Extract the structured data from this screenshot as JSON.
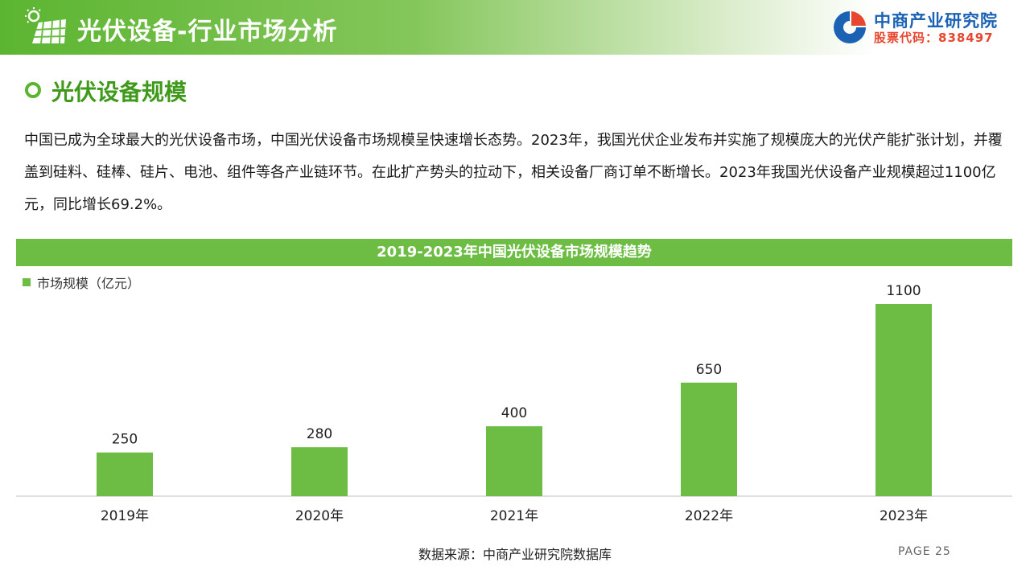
{
  "header": {
    "title": "光伏设备-行业市场分析",
    "icon": "solar-panel-icon"
  },
  "brand": {
    "name": "中商产业研究院",
    "stock_code": "股票代码：838497",
    "logo": "company-logo-icon"
  },
  "section": {
    "title": "光伏设备规模",
    "bullet": "circle-bullet-icon"
  },
  "paragraph": "中国已成为全球最大的光伏设备市场，中国光伏设备市场规模呈快速增长态势。2023年，我国光伏企业发布并实施了规模庞大的光伏产能扩张计划，并覆盖到硅料、硅棒、硅片、电池、组件等各产业链环节。在此扩产势头的拉动下，相关设备厂商订单不断增长。2023年我国光伏设备产业规模超过1100亿元，同比增长69.2%。",
  "chart_data": {
    "type": "bar",
    "title": "2019-2023年中国光伏设备市场规模趋势",
    "categories": [
      "2019年",
      "2020年",
      "2021年",
      "2022年",
      "2023年"
    ],
    "series": [
      {
        "name": "市场规模（亿元）",
        "values": [
          250,
          280,
          400,
          650,
          1100
        ]
      }
    ],
    "ylim": [
      0,
      1100
    ],
    "grid": false,
    "legend": "top-left",
    "color": "#6dbd44"
  },
  "footer": {
    "source": "数据来源：中商产业研究院数据库",
    "page": "PAGE  25"
  },
  "colors": {
    "accent": "#6dbd44",
    "brand_blue": "#1b62b5",
    "brand_red": "#e8462f",
    "section_green": "#3f9a1b"
  }
}
